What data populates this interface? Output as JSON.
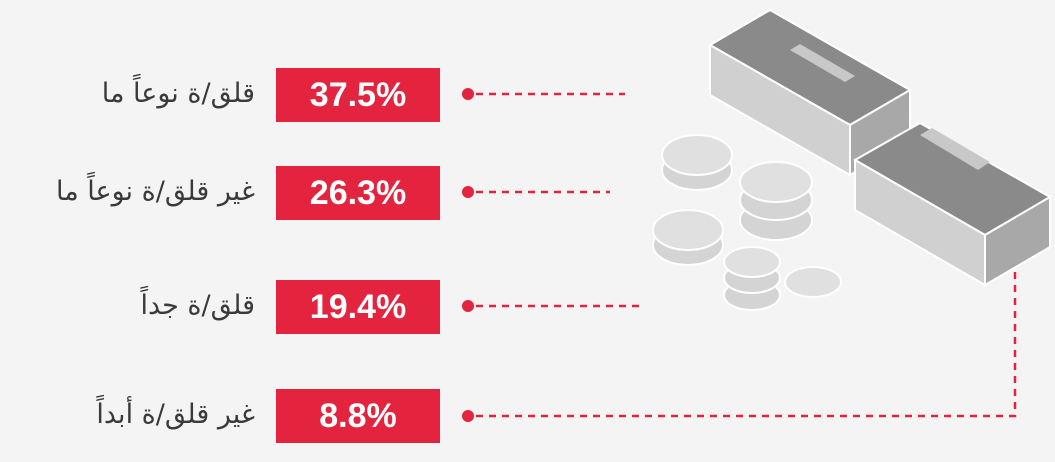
{
  "items": [
    {
      "label": "قلق/ة نوعاً ما",
      "value": "37.5%"
    },
    {
      "label": "غير قلق/ة نوعاً ما",
      "value": "26.3%"
    },
    {
      "label": "قلق/ة جداً",
      "value": "19.4%"
    },
    {
      "label": "غير قلق/ة أبداً",
      "value": "8.8%"
    }
  ]
}
